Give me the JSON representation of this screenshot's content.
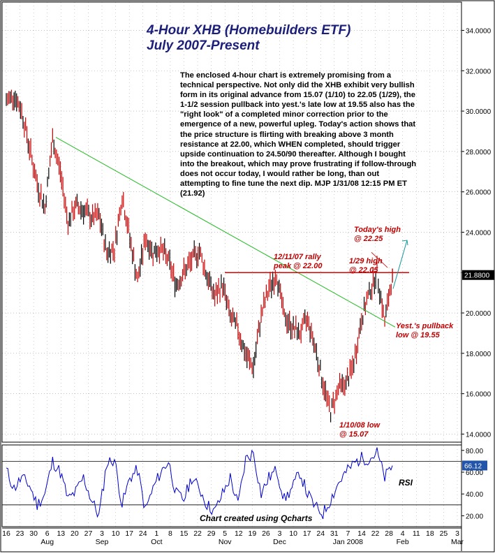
{
  "chart_data": {
    "type": "line",
    "title": "4-Hour XHB (Homebuilders ETF)",
    "subtitle": "July 2007-Present",
    "commentary": "The enclosed 4-hour chart is extremely promising from a technical perspective. Not only did the XHB exhibit very bullish form in its original advance from 15.07 (1/10) to 22.05 (1/29), the 1-1/2 session pullback into yest.'s late low at 19.55 also has the \"right look\" of a completed minor correction prior to the emergence of a new, powerful upleg. Today's action shows that the price structure is flirting with breaking above 3 month resistance at 22.00, which WHEN completed, should trigger upside continuation to 24.50/90 thereafter. Although I bought into the breakout, which may prove frustrating if follow-through does not occur today, I would rather be long, than out attempting to fine tune the next dip. MJP 1/31/08 12:15 PM ET (21.92)",
    "price_axis": {
      "ylim": [
        13.6,
        35.4
      ],
      "ticks": [
        "34.0000",
        "32.0000",
        "30.0000",
        "28.0000",
        "26.0000",
        "24.0000",
        "22.0000",
        "20.0000",
        "18.0000",
        "16.0000",
        "14.0000"
      ],
      "last_price_label": "21.8800"
    },
    "x_axis": {
      "day_labels": [
        "16",
        "23",
        "30",
        "6",
        "13",
        "20",
        "27",
        "3",
        "10",
        "17",
        "24",
        "1",
        "8",
        "15",
        "22",
        "29",
        "5",
        "12",
        "19",
        "26",
        "3",
        "10",
        "17",
        "24",
        "31",
        "7",
        "14",
        "22",
        "28",
        "4",
        "11",
        "18",
        "25",
        "3"
      ],
      "month_labels": [
        "Aug",
        "Sep",
        "Oct",
        "Nov",
        "Dec",
        "Jan 2008",
        "Feb",
        "Mar"
      ]
    },
    "series": [
      {
        "name": "XHB",
        "color": "#cc0000",
        "x": [
          "2007-07-16",
          "2007-07-20",
          "2007-07-24",
          "2007-07-27",
          "2007-07-31",
          "2007-08-03",
          "2007-08-08",
          "2007-08-13",
          "2007-08-16",
          "2007-08-21",
          "2007-08-24",
          "2007-08-29",
          "2007-09-04",
          "2007-09-07",
          "2007-09-12",
          "2007-09-17",
          "2007-09-21",
          "2007-09-26",
          "2007-10-01",
          "2007-10-04",
          "2007-10-09",
          "2007-10-12",
          "2007-10-17",
          "2007-10-22",
          "2007-10-26",
          "2007-10-31",
          "2007-11-05",
          "2007-11-08",
          "2007-11-13",
          "2007-11-16",
          "2007-11-21",
          "2007-11-27",
          "2007-11-30",
          "2007-12-05",
          "2007-12-10",
          "2007-12-13",
          "2007-12-18",
          "2007-12-21",
          "2007-12-27",
          "2008-01-02",
          "2008-01-04",
          "2008-01-08",
          "2008-01-10",
          "2008-01-14",
          "2008-01-17",
          "2008-01-21",
          "2008-01-24",
          "2008-01-28",
          "2008-01-29",
          "2008-01-30",
          "2008-01-31"
        ],
        "values": [
          30.5,
          30.8,
          30.0,
          28.2,
          26.4,
          25.2,
          28.6,
          27.0,
          24.5,
          25.3,
          25.1,
          24.7,
          24.8,
          23.0,
          23.2,
          25.8,
          23.7,
          21.6,
          23.7,
          23.0,
          23.2,
          22.6,
          21.4,
          22.0,
          22.6,
          23.1,
          21.8,
          20.8,
          21.4,
          19.8,
          19.2,
          17.9,
          17.3,
          19.9,
          21.2,
          21.9,
          19.8,
          19.3,
          19.0,
          19.7,
          18.3,
          16.5,
          15.1,
          16.3,
          16.5,
          17.5,
          19.7,
          21.0,
          22.05,
          19.55,
          21.92
        ]
      },
      {
        "name": "RSI",
        "color": "#0000cc",
        "ylim": [
          10,
          85
        ],
        "ticks": [
          "80.00",
          "60.00",
          "40.00",
          "20.00"
        ],
        "last_value_label": "66.12",
        "values": [
          62,
          45,
          55,
          48,
          30,
          40,
          70,
          60,
          35,
          42,
          55,
          35,
          20,
          68,
          72,
          30,
          55,
          62,
          25,
          45,
          60,
          70,
          40,
          35,
          55,
          45,
          30,
          24,
          40,
          55,
          30,
          72,
          78,
          40,
          55,
          62,
          35,
          45,
          60,
          40,
          28,
          22,
          35,
          50,
          60,
          68,
          73,
          72,
          78,
          55,
          66
        ]
      }
    ],
    "resistance_level": 22.0,
    "annotations": {
      "rally_peak": "12/11/07 rally\npeak @ 22.00",
      "todays_high": "Today's high\n@ 22.25",
      "high_129": "1/29 high\n@ 22.05",
      "pullback": "Yest.'s pullback\nlow @ 19.55",
      "low_110": "1/10/08 low\n@ 15.07"
    },
    "rsi_label": "RSI",
    "credit": "Chart created using Qcharts",
    "colors": {
      "price": "#cc0000",
      "price_alt": "#000000",
      "trendline": "#22bb22",
      "resistance": "#dd0000",
      "projection": "#119999",
      "rsi": "#0000cc",
      "grid": "#999999",
      "title": "#1b1f7a"
    }
  }
}
